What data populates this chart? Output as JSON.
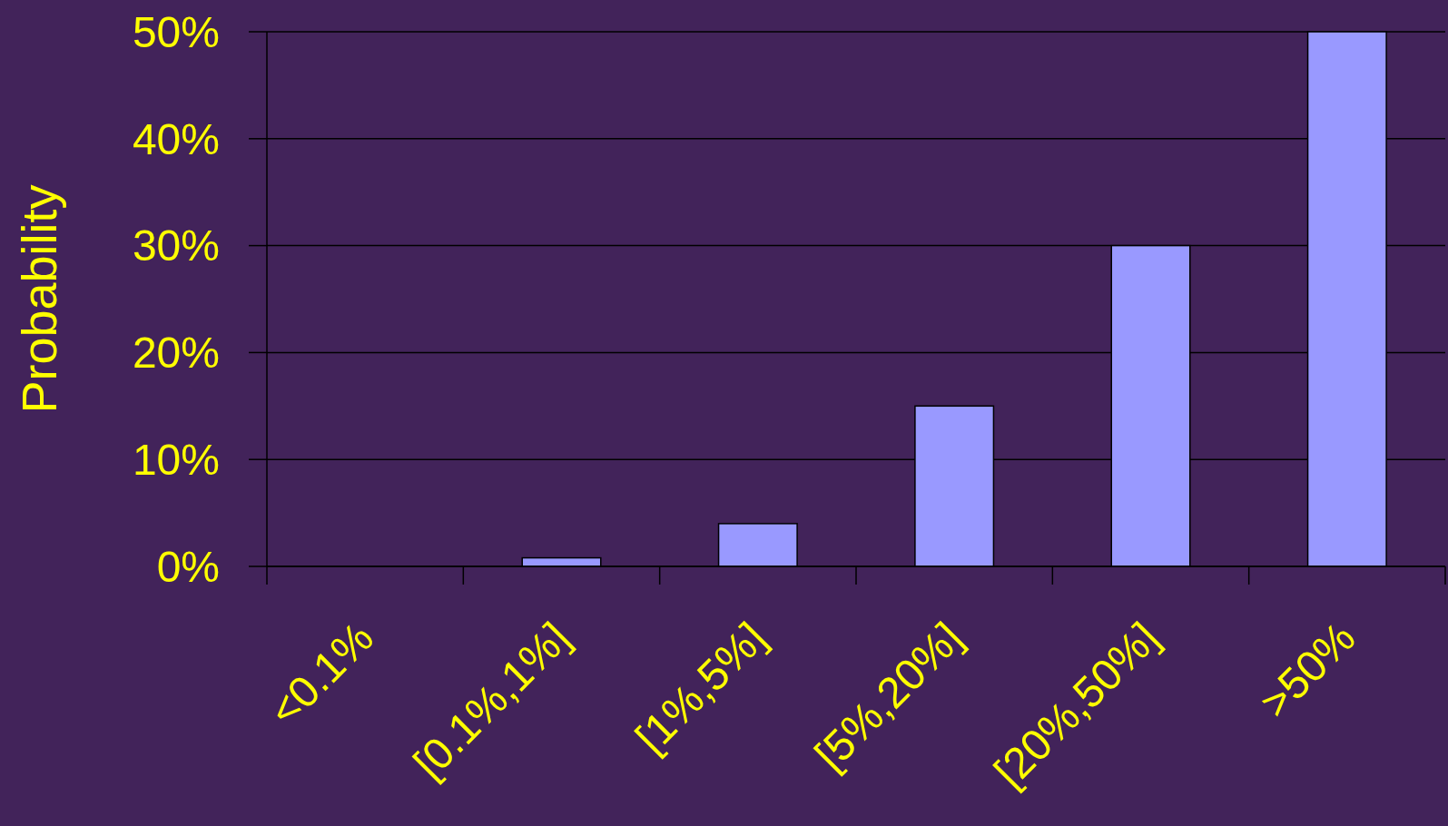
{
  "chart_data": {
    "type": "bar",
    "ylabel": "Probability",
    "categories": [
      "<0.1%",
      "[0.1%,1%]",
      "[1%,5%]",
      "[5%,20%]",
      "[20%,50%]",
      ">50%"
    ],
    "values": [
      0,
      0.8,
      4,
      15,
      30,
      50
    ],
    "color": "#9999ff",
    "ylim": [
      0,
      50
    ],
    "yticks": [
      {
        "value": 0,
        "label": "0%"
      },
      {
        "value": 10,
        "label": "10%"
      },
      {
        "value": 20,
        "label": "20%"
      },
      {
        "value": 30,
        "label": "30%"
      },
      {
        "value": 40,
        "label": "40%"
      },
      {
        "value": 50,
        "label": "50%"
      }
    ],
    "grid": "y"
  }
}
